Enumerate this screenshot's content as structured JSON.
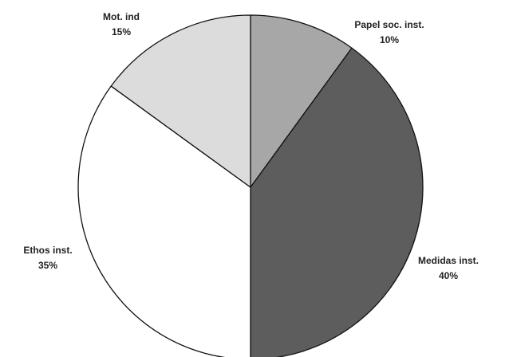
{
  "chart_data": {
    "type": "pie",
    "slices": [
      {
        "label": "Papel soc. inst.",
        "value_label": "10%",
        "value": 10,
        "color": "#a7a7a7"
      },
      {
        "label": "Medidas inst.",
        "value_label": "40%",
        "value": 40,
        "color": "#5d5d5d"
      },
      {
        "label": "Ethos inst.",
        "value_label": "35%",
        "value": 35,
        "color": "#ffffff"
      },
      {
        "label": "Mot. ind",
        "value_label": "15%",
        "value": 15,
        "color": "#dcdcdc"
      }
    ],
    "start_angle_deg": 0,
    "direction": "clockwise",
    "legend": "none",
    "title": ""
  }
}
